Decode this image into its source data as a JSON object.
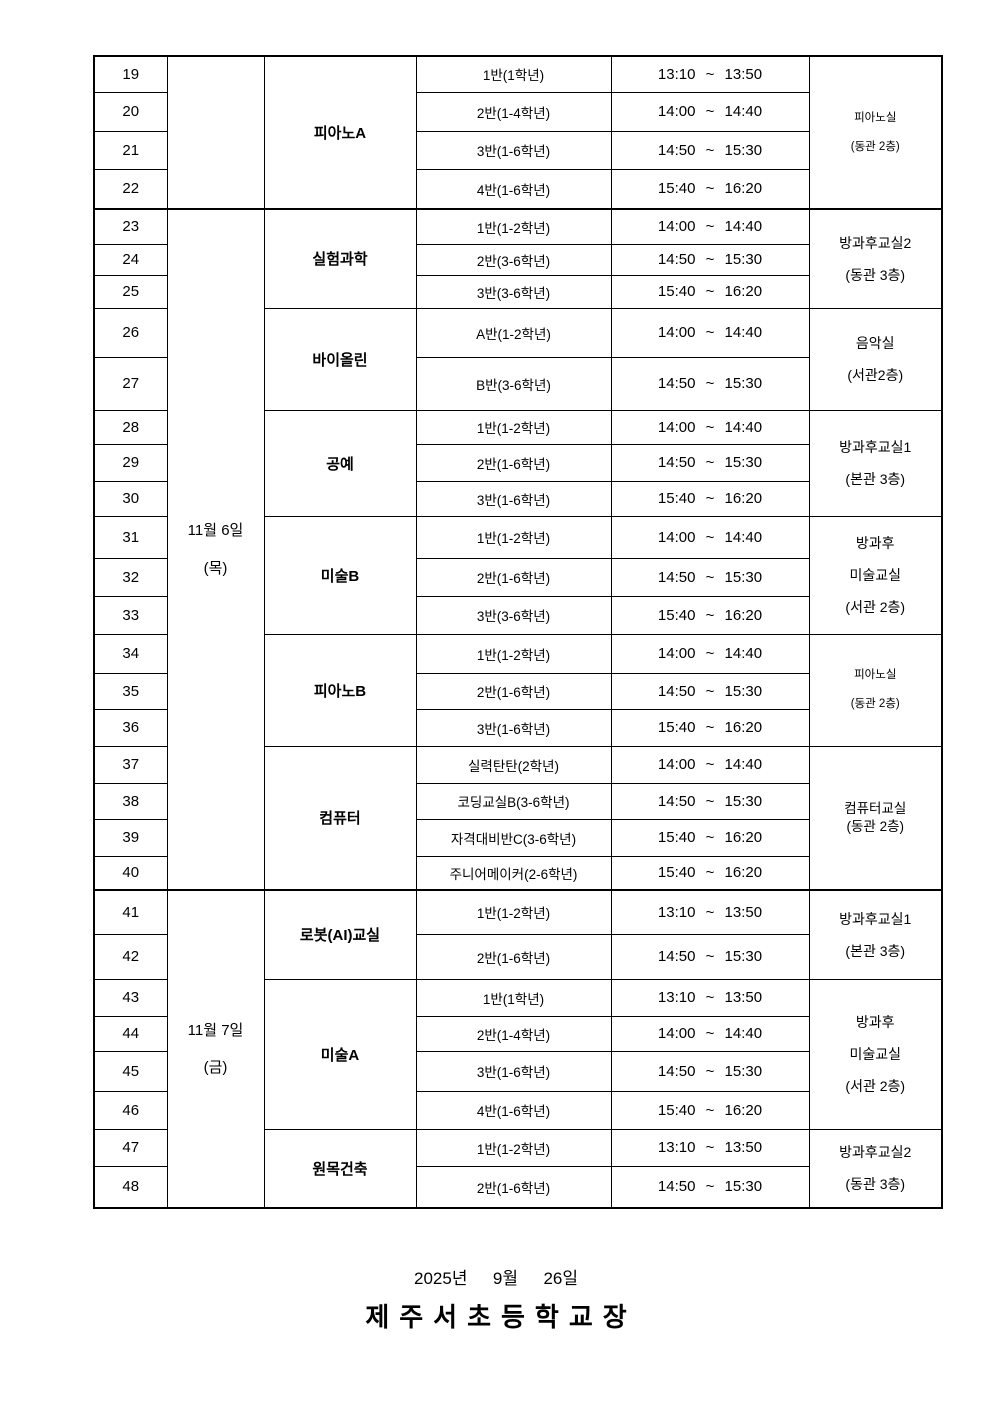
{
  "table": {
    "date_blocks": [
      {
        "date_lines": [],
        "programs": [
          {
            "name": "피아노A",
            "location_lines": [
              "피아노실",
              "(동관 2층)"
            ],
            "location_style": "small",
            "rows": [
              {
                "num": "19",
                "class_name": "1반(1학년)",
                "time": "13:10 ~ 13:50"
              },
              {
                "num": "20",
                "class_name": "2반(1-4학년)",
                "time": "14:00 ~ 14:40"
              },
              {
                "num": "21",
                "class_name": "3반(1-6학년)",
                "time": "14:50 ~ 15:30"
              },
              {
                "num": "22",
                "class_name": "4반(1-6학년)",
                "time": "15:40 ~ 16:20"
              }
            ]
          }
        ]
      },
      {
        "date_lines": [
          "11월 6일",
          "(목)"
        ],
        "programs": [
          {
            "name": "실험과학",
            "location_lines": [
              "방과후교실2",
              "(동관 3층)"
            ],
            "location_style": "normal",
            "rows": [
              {
                "num": "23",
                "class_name": "1반(1-2학년)",
                "time": "14:00 ~ 14:40"
              },
              {
                "num": "24",
                "class_name": "2반(3-6학년)",
                "time": "14:50 ~ 15:30"
              },
              {
                "num": "25",
                "class_name": "3반(3-6학년)",
                "time": "15:40 ~ 16:20"
              }
            ]
          },
          {
            "name": "바이올린",
            "location_lines": [
              "음악실",
              "(서관2층)"
            ],
            "location_style": "normal",
            "rows": [
              {
                "num": "26",
                "class_name": "A반(1-2학년)",
                "time": "14:00 ~ 14:40"
              },
              {
                "num": "27",
                "class_name": "B반(3-6학년)",
                "time": "14:50 ~ 15:30"
              }
            ]
          },
          {
            "name": "공예",
            "location_lines": [
              "방과후교실1",
              "(본관 3층)"
            ],
            "location_style": "normal",
            "rows": [
              {
                "num": "28",
                "class_name": "1반(1-2학년)",
                "time": "14:00 ~ 14:40"
              },
              {
                "num": "29",
                "class_name": "2반(1-6학년)",
                "time": "14:50 ~ 15:30"
              },
              {
                "num": "30",
                "class_name": "3반(1-6학년)",
                "time": "15:40 ~ 16:20"
              }
            ]
          },
          {
            "name": "미술B",
            "location_lines": [
              "방과후",
              "미술교실",
              "(서관 2층)"
            ],
            "location_style": "normal",
            "rows": [
              {
                "num": "31",
                "class_name": "1반(1-2학년)",
                "time": "14:00 ~ 14:40"
              },
              {
                "num": "32",
                "class_name": "2반(1-6학년)",
                "time": "14:50 ~ 15:30"
              },
              {
                "num": "33",
                "class_name": "3반(3-6학년)",
                "time": "15:40 ~ 16:20"
              }
            ]
          },
          {
            "name": "피아노B",
            "location_lines": [
              "피아노실",
              "(동관 2층)"
            ],
            "location_style": "small",
            "rows": [
              {
                "num": "34",
                "class_name": "1반(1-2학년)",
                "time": "14:00 ~ 14:40"
              },
              {
                "num": "35",
                "class_name": "2반(1-6학년)",
                "time": "14:50 ~ 15:30"
              },
              {
                "num": "36",
                "class_name": "3반(1-6학년)",
                "time": "15:40 ~ 16:20"
              }
            ]
          },
          {
            "name": "컴퓨터",
            "location_lines": [
              "컴퓨터교실",
              "(동관 2층)"
            ],
            "location_style": "tight",
            "rows": [
              {
                "num": "37",
                "class_name": "실력탄탄(2학년)",
                "time": "14:00 ~ 14:40"
              },
              {
                "num": "38",
                "class_name": "코딩교실B(3-6학년)",
                "time": "14:50 ~ 15:30"
              },
              {
                "num": "39",
                "class_name": "자격대비반C(3-6학년)",
                "time": "15:40 ~ 16:20"
              },
              {
                "num": "40",
                "class_name": "주니어메이커(2-6학년)",
                "time": "15:40 ~ 16:20"
              }
            ]
          }
        ]
      },
      {
        "date_lines": [
          "11월 7일",
          "(금)"
        ],
        "programs": [
          {
            "name": "로봇(AI)교실",
            "location_lines": [
              "방과후교실1",
              "(본관 3층)"
            ],
            "location_style": "normal",
            "rows": [
              {
                "num": "41",
                "class_name": "1반(1-2학년)",
                "time": "13:10 ~ 13:50"
              },
              {
                "num": "42",
                "class_name": "2반(1-6학년)",
                "time": "14:50 ~ 15:30"
              }
            ]
          },
          {
            "name": "미술A",
            "location_lines": [
              "방과후",
              "미술교실",
              "(서관 2층)"
            ],
            "location_style": "normal",
            "rows": [
              {
                "num": "43",
                "class_name": "1반(1학년)",
                "time": "13:10 ~ 13:50"
              },
              {
                "num": "44",
                "class_name": "2반(1-4학년)",
                "time": "14:00 ~ 14:40"
              },
              {
                "num": "45",
                "class_name": "3반(1-6학년)",
                "time": "14:50 ~ 15:30"
              },
              {
                "num": "46",
                "class_name": "4반(1-6학년)",
                "time": "15:40 ~ 16:20"
              }
            ]
          },
          {
            "name": "원목건축",
            "location_lines": [
              "방과후교실2",
              "(동관 3층)"
            ],
            "location_style": "normal",
            "rows": [
              {
                "num": "47",
                "class_name": "1반(1-2학년)",
                "time": "13:10 ~ 13:50"
              },
              {
                "num": "48",
                "class_name": "2반(1-6학년)",
                "time": "14:50 ~ 15:30"
              }
            ]
          }
        ]
      }
    ]
  },
  "footer": {
    "issue_date": "2025년  9월  26일",
    "signature": "제주서초등학교장"
  }
}
